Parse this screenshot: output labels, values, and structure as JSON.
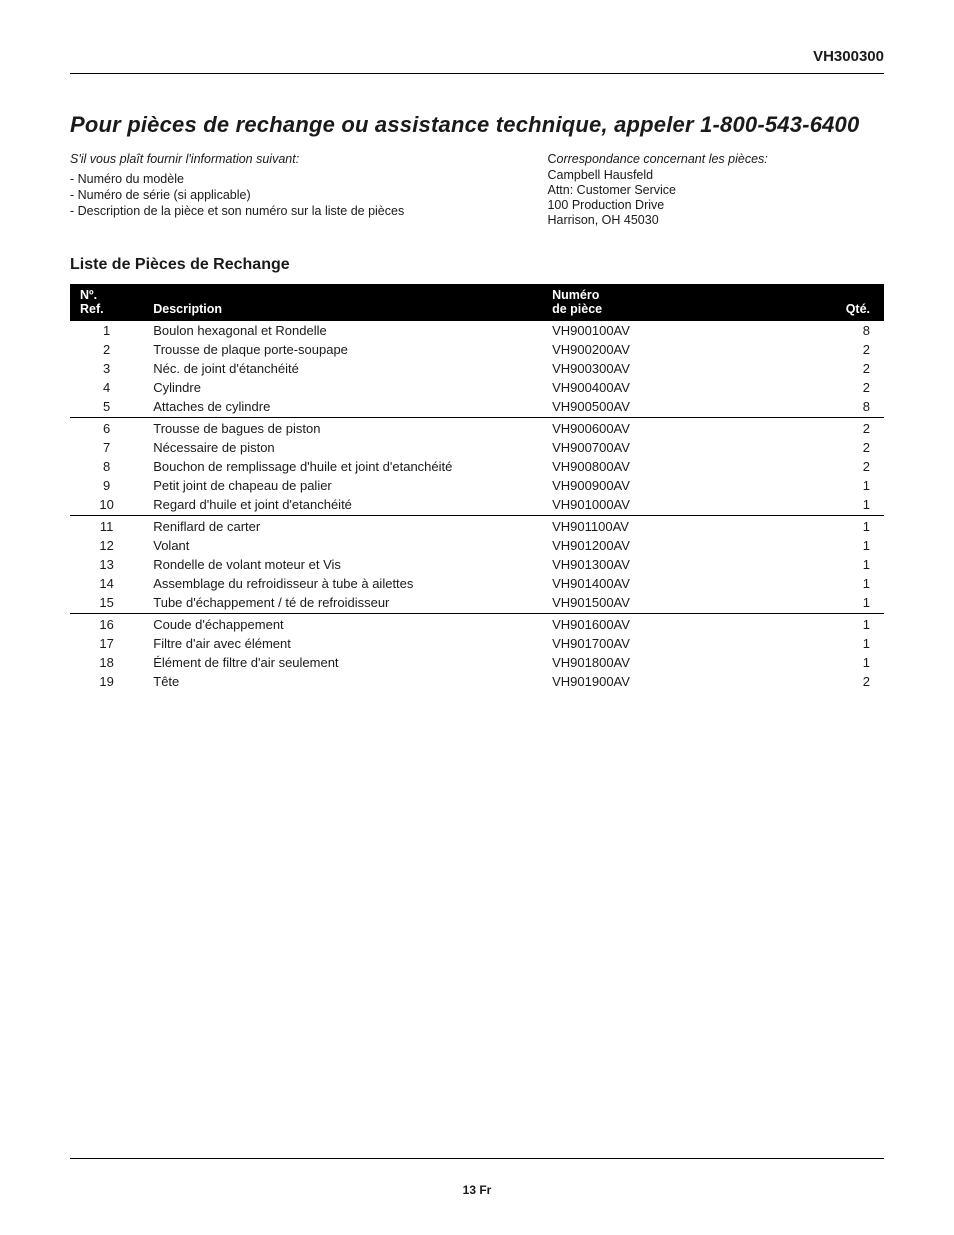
{
  "header": {
    "model": "VH300300"
  },
  "title": "Pour pièces de rechange ou assistance technique, appeler 1-800-543-6400",
  "left_block": {
    "intro": "S'il vous plaît fournir l'information suivant:",
    "lines": [
      "- Numéro du modèle",
      "- Numéro de série (si applicable)",
      "- Description de la pièce et son numéro sur la liste de pièces"
    ]
  },
  "right_block": {
    "title_prefix": "C",
    "title_rest": "orrespondance concernant les pièces:",
    "lines": [
      "Campbell Hausfeld",
      "Attn: Customer Service",
      "100 Production Drive",
      "Harrison, OH 45030"
    ]
  },
  "parts_table": {
    "title": "Liste de Pièces de Rechange",
    "columns": {
      "ref_line1": "Nº.",
      "ref_line2": "Ref.",
      "desc": "Description",
      "num_line1": "Numéro",
      "num_line2": "de pièce",
      "qty": "Qté."
    },
    "divider_after_refs": [
      5,
      10,
      15
    ],
    "rows": [
      {
        "ref": "1",
        "desc": "Boulon hexagonal et Rondelle",
        "num": "VH900100AV",
        "qty": "8"
      },
      {
        "ref": "2",
        "desc": "Trousse de plaque porte-soupape",
        "num": "VH900200AV",
        "qty": "2"
      },
      {
        "ref": "3",
        "desc": "Néc. de joint d'étanchéité",
        "num": "VH900300AV",
        "qty": "2"
      },
      {
        "ref": "4",
        "desc": "Cylindre",
        "num": "VH900400AV",
        "qty": "2"
      },
      {
        "ref": "5",
        "desc": "Attaches de cylindre",
        "num": "VH900500AV",
        "qty": "8"
      },
      {
        "ref": "6",
        "desc": "Trousse de bagues de piston",
        "num": "VH900600AV",
        "qty": "2"
      },
      {
        "ref": "7",
        "desc": "Nécessaire de piston",
        "num": "VH900700AV",
        "qty": "2"
      },
      {
        "ref": "8",
        "desc": "Bouchon de remplissage d'huile et joint d'etanchéité",
        "num": "VH900800AV",
        "qty": "2"
      },
      {
        "ref": "9",
        "desc": "Petit joint de chapeau de palier",
        "num": "VH900900AV",
        "qty": "1"
      },
      {
        "ref": "10",
        "desc": "Regard d'huile et joint d'etanchéité",
        "num": "VH901000AV",
        "qty": "1"
      },
      {
        "ref": "11",
        "desc": "Reniflard de carter",
        "num": "VH901100AV",
        "qty": "1"
      },
      {
        "ref": "12",
        "desc": "Volant",
        "num": "VH901200AV",
        "qty": "1"
      },
      {
        "ref": "13",
        "desc": "Rondelle de volant moteur et Vis",
        "num": "VH901300AV",
        "qty": "1"
      },
      {
        "ref": "14",
        "desc": "Assemblage du refroidisseur à tube à ailettes",
        "num": "VH901400AV",
        "qty": "1"
      },
      {
        "ref": "15",
        "desc": "Tube d'échappement / té de refroidisseur",
        "num": "VH901500AV",
        "qty": "1"
      },
      {
        "ref": "16",
        "desc": "Coude d'échappement",
        "num": "VH901600AV",
        "qty": "1"
      },
      {
        "ref": "17",
        "desc": "Filtre d'air avec élément",
        "num": "VH901700AV",
        "qty": "1"
      },
      {
        "ref": "18",
        "desc": "Élément de filtre d'air seulement",
        "num": "VH901800AV",
        "qty": "1"
      },
      {
        "ref": "19",
        "desc": "Tête",
        "num": "VH901900AV",
        "qty": "2"
      }
    ]
  },
  "footer": {
    "page_number": "13 Fr"
  }
}
